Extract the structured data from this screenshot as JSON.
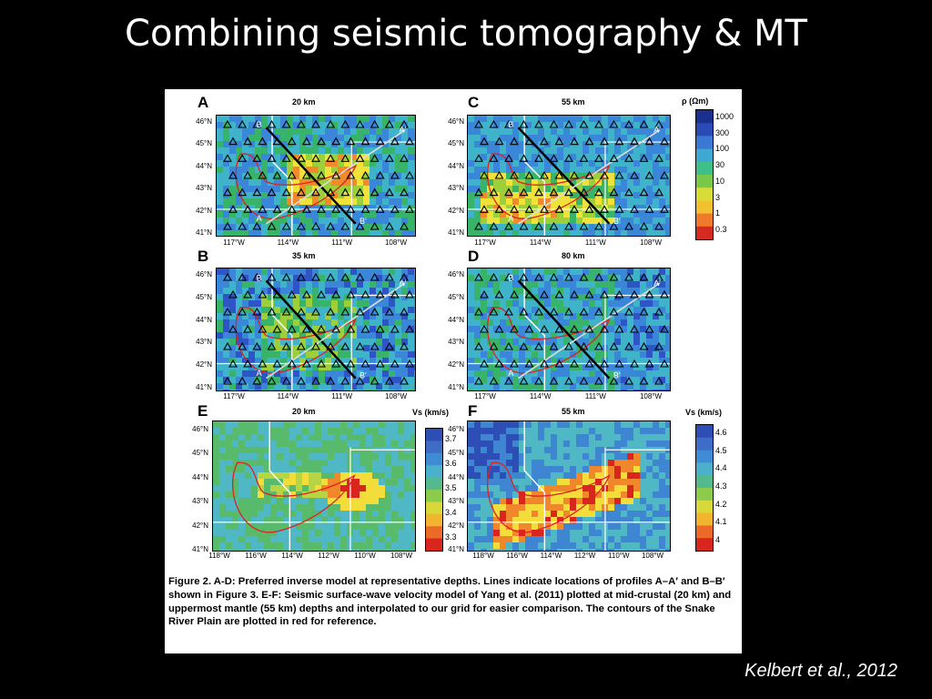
{
  "slide": {
    "title": "Combining seismic tomography & MT",
    "credit": "Kelbert et al., 2012"
  },
  "figure": {
    "panels": [
      {
        "id": "A",
        "depth": "20 km",
        "type": "resistivity"
      },
      {
        "id": "C",
        "depth": "55 km",
        "type": "resistivity"
      },
      {
        "id": "B",
        "depth": "35 km",
        "type": "resistivity"
      },
      {
        "id": "D",
        "depth": "80 km",
        "type": "resistivity"
      },
      {
        "id": "E",
        "depth": "20 km",
        "type": "velocity"
      },
      {
        "id": "F",
        "depth": "55 km",
        "type": "velocity"
      }
    ],
    "lat_labels": [
      "46°N",
      "45°N",
      "44°N",
      "43°N",
      "42°N",
      "41°N"
    ],
    "lon_labels_mt": [
      "117°W",
      "114°W",
      "111°W",
      "108°W"
    ],
    "lon_labels_vs": [
      "118°W",
      "116°W",
      "114°W",
      "112°W",
      "110°W",
      "108°W"
    ],
    "profile_labels": {
      "a": "A",
      "a_prime": "A'",
      "b": "B",
      "b_prime": "B'"
    },
    "colorbars": {
      "rho": {
        "title": "ρ (Ωm)",
        "ticks": [
          "1000",
          "300",
          "100",
          "30",
          "10",
          "3",
          "1",
          "0.3"
        ]
      },
      "vs_e": {
        "title": "Vs (km/s)",
        "ticks": [
          "3.7",
          "3.6",
          "3.5",
          "3.4",
          "3.3"
        ]
      },
      "vs_f": {
        "title": "Vs (km/s)",
        "ticks": [
          "4.6",
          "4.5",
          "4.4",
          "4.3",
          "4.2",
          "4.1",
          "4"
        ]
      }
    },
    "caption": "Figure 2. A-D: Preferred inverse model at representative depths. Lines indicate locations of profiles A–A′ and B–B′ shown in Figure 3. E-F: Seismic surface-wave velocity model of Yang et al. (2011) plotted at mid-crustal (20 km) and uppermost mantle (55 km) depths and interpolated to our grid for easier comparison. The contours of the Snake River Plain are plotted in red for reference."
  }
}
